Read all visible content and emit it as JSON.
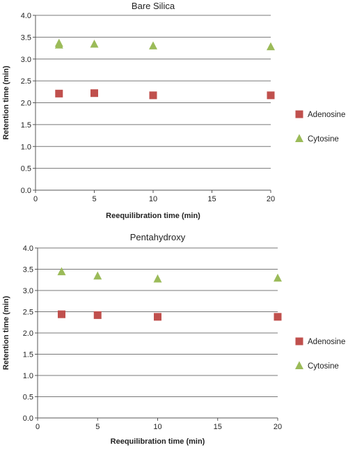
{
  "chart_data": [
    {
      "type": "scatter",
      "title": "Bare Silica",
      "xlabel": "Reequilibration time (min)",
      "ylabel": "Retention time (min)",
      "xlim": [
        0,
        20
      ],
      "ylim": [
        0,
        4.0
      ],
      "x_ticks": [
        "0",
        "5",
        "10",
        "15",
        "20"
      ],
      "y_ticks": [
        "0.0",
        "0.5",
        "1.0",
        "1.5",
        "2.0",
        "2.5",
        "3.0",
        "3.5",
        "4.0"
      ],
      "grid": "horizontal",
      "legend": "right",
      "series": [
        {
          "name": "Adenosine",
          "marker": "square",
          "color": "#c0504d",
          "points": [
            {
              "x": 2,
              "y": 2.21
            },
            {
              "x": 5,
              "y": 2.22
            },
            {
              "x": 10,
              "y": 2.17
            },
            {
              "x": 20,
              "y": 2.17
            }
          ]
        },
        {
          "name": "Cytosine",
          "marker": "triangle",
          "color": "#9bbb59",
          "points": [
            {
              "x": 2,
              "y": 3.32
            },
            {
              "x": 2,
              "y": 3.36
            },
            {
              "x": 5,
              "y": 3.34
            },
            {
              "x": 10,
              "y": 3.3
            },
            {
              "x": 20,
              "y": 3.28
            }
          ]
        }
      ]
    },
    {
      "type": "scatter",
      "title": "Pentahydroxy",
      "xlabel": "Reequilibration time (min)",
      "ylabel": "Retention time (min)",
      "xlim": [
        0,
        20
      ],
      "ylim": [
        0,
        4.0
      ],
      "x_ticks": [
        "0",
        "5",
        "10",
        "15",
        "20"
      ],
      "y_ticks": [
        "0.0",
        "0.5",
        "1.0",
        "1.5",
        "2.0",
        "2.5",
        "3.0",
        "3.5",
        "4.0"
      ],
      "grid": "horizontal",
      "legend": "right",
      "series": [
        {
          "name": "Adenosine",
          "marker": "square",
          "color": "#c0504d",
          "points": [
            {
              "x": 2,
              "y": 2.44
            },
            {
              "x": 5,
              "y": 2.42
            },
            {
              "x": 10,
              "y": 2.38
            },
            {
              "x": 20,
              "y": 2.38
            }
          ]
        },
        {
          "name": "Cytosine",
          "marker": "triangle",
          "color": "#9bbb59",
          "points": [
            {
              "x": 2,
              "y": 3.44
            },
            {
              "x": 5,
              "y": 3.34
            },
            {
              "x": 10,
              "y": 3.27
            },
            {
              "x": 20,
              "y": 3.29
            }
          ]
        }
      ]
    }
  ]
}
